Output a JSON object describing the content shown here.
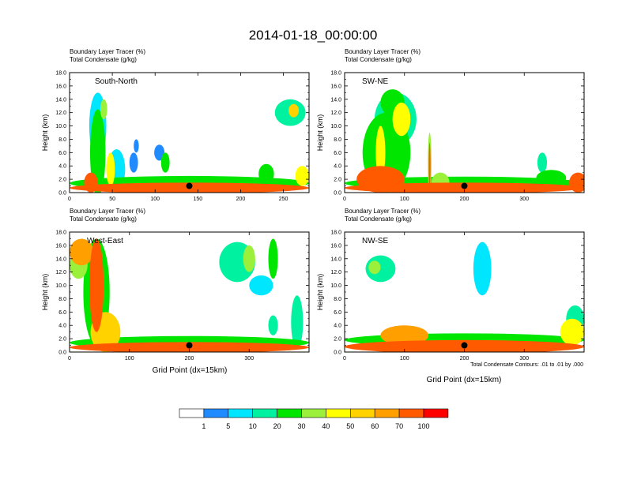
{
  "figure": {
    "title": "2014-01-18_00:00:00",
    "contour_note": "Total Condensate Contours: .01 to .01 by .000"
  },
  "colorbar": {
    "colors": [
      "#ffffff",
      "#1f8bff",
      "#00e6ff",
      "#00f2a0",
      "#00e600",
      "#9bf03c",
      "#ffff00",
      "#ffd200",
      "#ffa000",
      "#ff5a00",
      "#ff0000"
    ],
    "labels": [
      "1",
      "5",
      "10",
      "20",
      "30",
      "40",
      "50",
      "60",
      "70",
      "100"
    ]
  },
  "chart_data": [
    {
      "type": "heatmap",
      "panel": "South-North",
      "label_line1": "Boundary Layer Tracer   (%)",
      "label_line2": "Total Condensate   (g/kg)",
      "ylabel": "Height (km)",
      "xlabel": "",
      "ylim": [
        0,
        18
      ],
      "xlim": [
        0,
        280
      ],
      "yticks": [
        "0.0",
        "2.0",
        "4.0",
        "6.0",
        "8.0",
        "10.0",
        "12.0",
        "14.0",
        "16.0",
        "18.0"
      ],
      "xticks": [
        0,
        50,
        100,
        150,
        200,
        250
      ],
      "marker": {
        "x": 140,
        "y": 1.0
      },
      "blobs": [
        {
          "x": 140,
          "y": 0.7,
          "rx": 140,
          "ry": 0.8,
          "v": 75
        },
        {
          "x": 140,
          "y": 1.4,
          "rx": 140,
          "ry": 1.1,
          "v": 25
        },
        {
          "x": 25,
          "y": 1.5,
          "rx": 8,
          "ry": 1.5,
          "v": 90
        },
        {
          "x": 33,
          "y": 6,
          "rx": 9,
          "ry": 6.5,
          "v": 25
        },
        {
          "x": 33,
          "y": 10,
          "rx": 10,
          "ry": 5,
          "v": 6
        },
        {
          "x": 40,
          "y": 12.5,
          "rx": 4,
          "ry": 1.5,
          "v": 30
        },
        {
          "x": 48,
          "y": 3.5,
          "rx": 5,
          "ry": 2.5,
          "v": 45
        },
        {
          "x": 55,
          "y": 3.5,
          "rx": 10,
          "ry": 3,
          "v": 8
        },
        {
          "x": 75,
          "y": 4.5,
          "rx": 5,
          "ry": 1.5,
          "v": 4
        },
        {
          "x": 78,
          "y": 7,
          "rx": 3,
          "ry": 1,
          "v": 3
        },
        {
          "x": 105,
          "y": 6,
          "rx": 6,
          "ry": 1.2,
          "v": 4
        },
        {
          "x": 112,
          "y": 4.5,
          "rx": 5,
          "ry": 1.5,
          "v": 25
        },
        {
          "x": 230,
          "y": 2.8,
          "rx": 9,
          "ry": 1.5,
          "v": 20
        },
        {
          "x": 258,
          "y": 12.0,
          "rx": 18,
          "ry": 2.0,
          "v": 15
        },
        {
          "x": 262,
          "y": 12.3,
          "rx": 6,
          "ry": 1,
          "v": 55
        },
        {
          "x": 272,
          "y": 2.5,
          "rx": 8,
          "ry": 1.5,
          "v": 40
        }
      ]
    },
    {
      "type": "heatmap",
      "panel": "SW-NE",
      "label_line1": "Boundary Layer Tracer   (%)",
      "label_line2": "Total Condensate   (g/kg)",
      "ylabel": "Height (km)",
      "xlabel": "",
      "ylim": [
        0,
        18
      ],
      "xlim": [
        0,
        400
      ],
      "yticks": [
        "0.0",
        "2.0",
        "4.0",
        "6.0",
        "8.0",
        "10.0",
        "12.0",
        "14.0",
        "16.0",
        "18.0"
      ],
      "xticks": [
        0,
        100,
        200,
        300
      ],
      "marker": {
        "x": 200,
        "y": 1.0
      },
      "blobs": [
        {
          "x": 200,
          "y": 0.7,
          "rx": 200,
          "ry": 0.8,
          "v": 75
        },
        {
          "x": 200,
          "y": 1.4,
          "rx": 200,
          "ry": 1.0,
          "v": 25
        },
        {
          "x": 60,
          "y": 2.0,
          "rx": 40,
          "ry": 2.0,
          "v": 90
        },
        {
          "x": 70,
          "y": 6,
          "rx": 40,
          "ry": 6,
          "v": 20
        },
        {
          "x": 85,
          "y": 11,
          "rx": 35,
          "ry": 4,
          "v": 10
        },
        {
          "x": 95,
          "y": 11,
          "rx": 15,
          "ry": 2.5,
          "v": 40
        },
        {
          "x": 80,
          "y": 13.5,
          "rx": 20,
          "ry": 2,
          "v": 25
        },
        {
          "x": 60,
          "y": 6,
          "rx": 8,
          "ry": 4,
          "v": 40
        },
        {
          "x": 142,
          "y": 4.5,
          "rx": 3,
          "ry": 4.5,
          "v": 30
        },
        {
          "x": 142,
          "y": 4,
          "rx": 1.5,
          "ry": 3.5,
          "v": 70
        },
        {
          "x": 160,
          "y": 1.5,
          "rx": 15,
          "ry": 1.5,
          "v": 30
        },
        {
          "x": 330,
          "y": 4.5,
          "rx": 8,
          "ry": 1.5,
          "v": 15
        },
        {
          "x": 345,
          "y": 2.2,
          "rx": 25,
          "ry": 1.2,
          "v": 25
        },
        {
          "x": 390,
          "y": 1.5,
          "rx": 15,
          "ry": 1.5,
          "v": 85
        }
      ]
    },
    {
      "type": "heatmap",
      "panel": "West-East",
      "label_line1": "Boundary Layer Tracer   (%)",
      "label_line2": "Total Condensate   (g/kg)",
      "ylabel": "Height (km)",
      "xlabel": "Grid Point (dx=15km)",
      "ylim": [
        0,
        18
      ],
      "xlim": [
        0,
        400
      ],
      "yticks": [
        "0.0",
        "2.0",
        "4.0",
        "6.0",
        "8.0",
        "10.0",
        "12.0",
        "14.0",
        "16.0",
        "18.0"
      ],
      "xticks": [
        0,
        100,
        200,
        300
      ],
      "marker": {
        "x": 200,
        "y": 1.0
      },
      "blobs": [
        {
          "x": 200,
          "y": 0.7,
          "rx": 200,
          "ry": 0.8,
          "v": 75
        },
        {
          "x": 200,
          "y": 1.4,
          "rx": 200,
          "ry": 1.0,
          "v": 25
        },
        {
          "x": 45,
          "y": 9,
          "rx": 22,
          "ry": 8,
          "v": 25
        },
        {
          "x": 45,
          "y": 10,
          "rx": 12,
          "ry": 7,
          "v": 90
        },
        {
          "x": 20,
          "y": 15,
          "rx": 20,
          "ry": 2,
          "v": 60
        },
        {
          "x": 15,
          "y": 13,
          "rx": 15,
          "ry": 2,
          "v": 30
        },
        {
          "x": 60,
          "y": 3,
          "rx": 25,
          "ry": 3,
          "v": 50
        },
        {
          "x": 280,
          "y": 13.5,
          "rx": 30,
          "ry": 3,
          "v": 15
        },
        {
          "x": 300,
          "y": 14,
          "rx": 10,
          "ry": 2,
          "v": 35
        },
        {
          "x": 340,
          "y": 14,
          "rx": 8,
          "ry": 3,
          "v": 20
        },
        {
          "x": 320,
          "y": 10,
          "rx": 20,
          "ry": 1.5,
          "v": 6
        },
        {
          "x": 340,
          "y": 4,
          "rx": 8,
          "ry": 1.5,
          "v": 10
        },
        {
          "x": 380,
          "y": 4.5,
          "rx": 10,
          "ry": 4,
          "v": 15
        }
      ]
    },
    {
      "type": "heatmap",
      "panel": "NW-SE",
      "label_line1": "Boundary Layer Tracer   (%)",
      "label_line2": "Total Condensate   (g/kg)",
      "ylabel": "Height (km)",
      "xlabel": "Grid Point (dx=15km)",
      "ylim": [
        0,
        18
      ],
      "xlim": [
        0,
        400
      ],
      "yticks": [
        "0.0",
        "2.0",
        "4.0",
        "6.0",
        "8.0",
        "10.0",
        "12.0",
        "14.0",
        "16.0",
        "18.0"
      ],
      "xticks": [
        0,
        100,
        200,
        300
      ],
      "marker": {
        "x": 200,
        "y": 1.0
      },
      "blobs": [
        {
          "x": 200,
          "y": 0.8,
          "rx": 200,
          "ry": 1.0,
          "v": 80
        },
        {
          "x": 200,
          "y": 1.8,
          "rx": 200,
          "ry": 1.0,
          "v": 25
        },
        {
          "x": 100,
          "y": 2.5,
          "rx": 40,
          "ry": 1.5,
          "v": 60
        },
        {
          "x": 60,
          "y": 12.5,
          "rx": 25,
          "ry": 2,
          "v": 15
        },
        {
          "x": 50,
          "y": 12.7,
          "rx": 10,
          "ry": 1,
          "v": 35
        },
        {
          "x": 230,
          "y": 12.5,
          "rx": 15,
          "ry": 4,
          "v": 5
        },
        {
          "x": 380,
          "y": 3,
          "rx": 20,
          "ry": 2,
          "v": 40
        },
        {
          "x": 385,
          "y": 5,
          "rx": 15,
          "ry": 2,
          "v": 15
        }
      ]
    }
  ]
}
